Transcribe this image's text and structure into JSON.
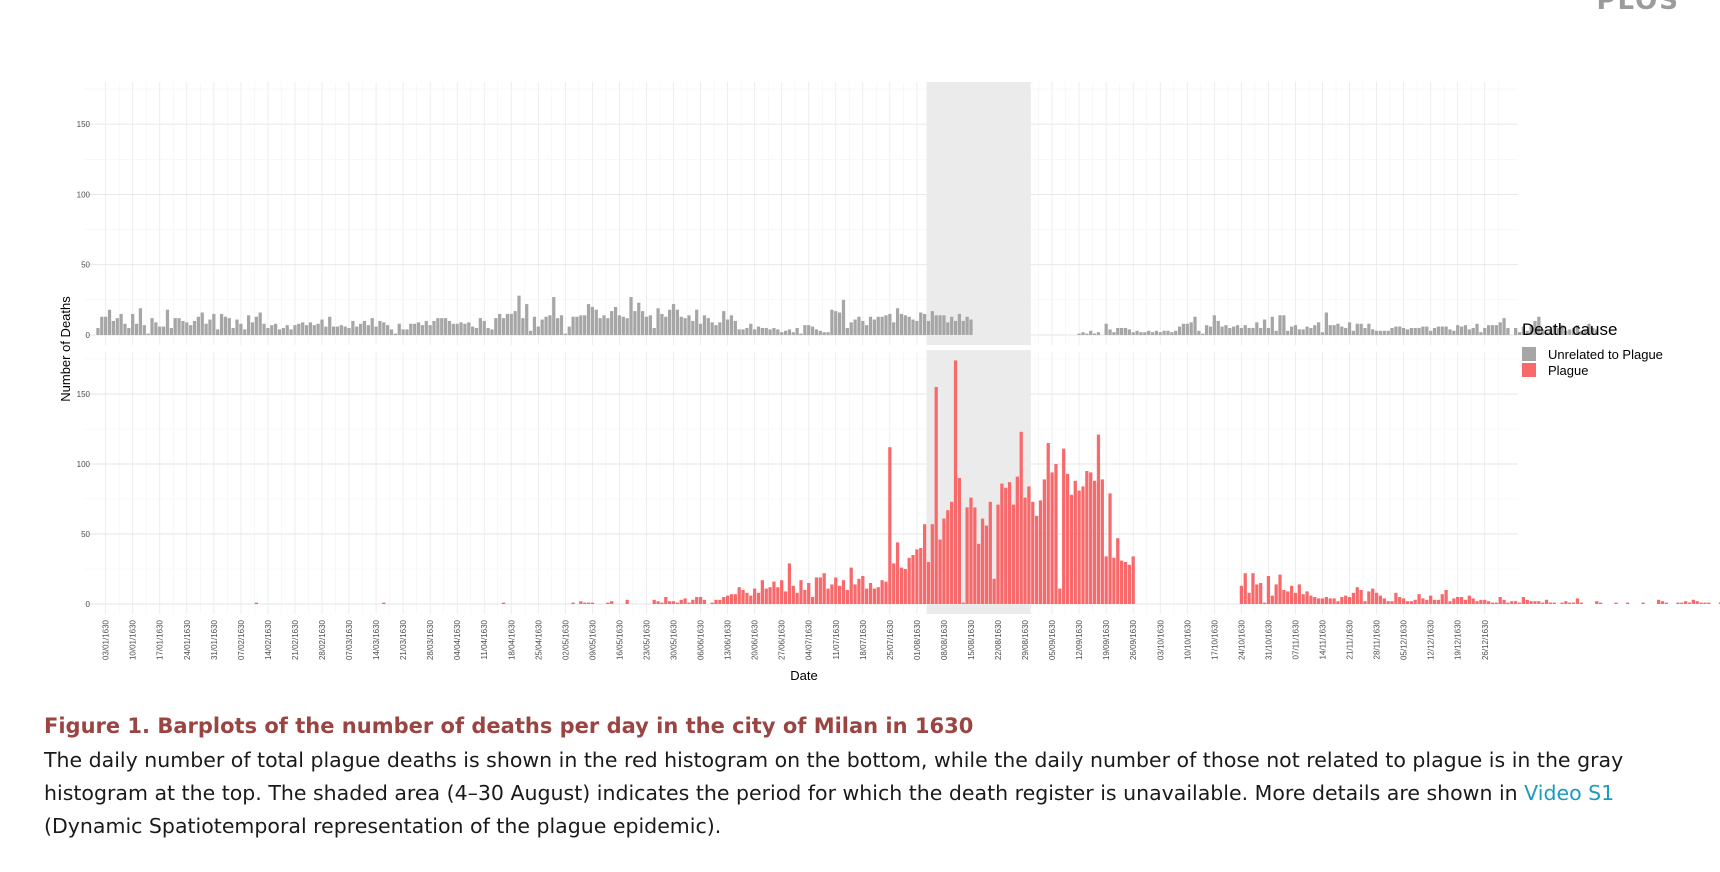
{
  "figure": {
    "caption_title": "Figure 1.  Barplots of the number of deaths per day in the city of Milan in 1630",
    "caption_text": "The daily number of total plague deaths is shown in the red histogram on the bottom, while the daily number of those not related to plague is in the gray histogram at the top. The shaded area (4–30 August) indicates the period for which the death register is unavailable. More details are shown in ",
    "caption_link": "Video S1",
    "caption_after": " (Dynamic Spatiotemporal representation of the plague epidemic).",
    "corner_logo": "PLOS"
  },
  "colors": {
    "unrelated": "#a6a6a6",
    "plague": "#f8696b",
    "shaded": "#ebebeb",
    "caption_title": "#9a4542",
    "link": "#1a9bbf"
  },
  "chart_data": {
    "type": "bar",
    "title": "",
    "xlabel": "Date",
    "ylabel": "Number of Deaths",
    "x_start": "1630-01-01",
    "x_end": "1630-12-31",
    "ylim": [
      0,
      180
    ],
    "yticks": [
      0,
      50,
      100,
      150
    ],
    "grid": true,
    "x_tick_labels": [
      "03/01/1630",
      "10/01/1630",
      "17/01/1630",
      "24/01/1630",
      "31/01/1630",
      "07/02/1630",
      "14/02/1630",
      "21/02/1630",
      "28/02/1630",
      "07/03/1630",
      "14/03/1630",
      "21/03/1630",
      "28/03/1630",
      "04/04/1630",
      "11/04/1630",
      "18/04/1630",
      "25/04/1630",
      "02/05/1630",
      "09/05/1630",
      "16/05/1630",
      "23/05/1630",
      "30/05/1630",
      "06/06/1630",
      "13/06/1630",
      "20/06/1630",
      "27/06/1630",
      "04/07/1630",
      "11/07/1630",
      "18/07/1630",
      "25/07/1630",
      "01/08/1630",
      "08/08/1630",
      "15/08/1630",
      "22/08/1630",
      "29/08/1630",
      "05/09/1630",
      "12/09/1630",
      "19/09/1630",
      "26/09/1630",
      "03/10/1630",
      "10/10/1630",
      "17/10/1630",
      "24/10/1630",
      "31/10/1630",
      "07/11/1630",
      "14/11/1630",
      "21/11/1630",
      "28/11/1630",
      "05/12/1630",
      "12/12/1630",
      "19/12/1630",
      "26/12/1630"
    ],
    "shaded_period": {
      "from": "1630-08-04",
      "to": "1630-08-30"
    },
    "legend": {
      "title": "Death cause",
      "position": "right",
      "entries": [
        "Unrelated to Plague",
        "Plague"
      ]
    },
    "panel_series": [
      "Unrelated to Plague",
      "Plague"
    ],
    "series": [
      {
        "name": "Unrelated to Plague",
        "values": [
          5,
          13,
          13,
          18,
          10,
          12,
          15,
          8,
          5,
          15,
          8,
          19,
          7,
          1,
          12,
          9,
          6,
          6,
          18,
          5,
          12,
          12,
          10,
          9,
          7,
          10,
          13,
          16,
          8,
          11,
          15,
          4,
          15,
          13,
          12,
          5,
          11,
          8,
          4,
          14,
          9,
          13,
          16,
          8,
          5,
          7,
          8,
          4,
          5,
          7,
          4,
          7,
          8,
          9,
          7,
          9,
          7,
          8,
          11,
          6,
          13,
          6,
          6,
          7,
          6,
          5,
          10,
          6,
          8,
          10,
          7,
          12,
          6,
          10,
          9,
          7,
          4,
          1,
          8,
          4,
          4,
          8,
          8,
          9,
          7,
          10,
          7,
          10,
          12,
          12,
          12,
          10,
          8,
          8,
          9,
          8,
          9,
          6,
          5,
          12,
          10,
          5,
          4,
          12,
          15,
          12,
          15,
          15,
          17,
          28,
          12,
          22,
          3,
          13,
          6,
          11,
          13,
          14,
          27,
          12,
          14,
          1,
          6,
          13,
          13,
          14,
          14,
          22,
          20,
          18,
          12,
          14,
          12,
          17,
          20,
          14,
          13,
          12,
          27,
          17,
          23,
          17,
          13,
          14,
          5,
          19,
          15,
          13,
          18,
          22,
          18,
          13,
          12,
          14,
          10,
          18,
          8,
          14,
          12,
          9,
          7,
          9,
          17,
          11,
          14,
          10,
          4,
          4,
          5,
          8,
          4,
          6,
          5,
          5,
          4,
          5,
          4,
          2,
          3,
          4,
          2,
          5,
          1,
          7,
          7,
          6,
          4,
          3,
          2,
          2,
          18,
          17,
          16,
          25,
          5,
          9,
          11,
          13,
          10,
          7,
          13,
          11,
          13,
          13,
          14,
          15,
          9,
          19,
          15,
          14,
          13,
          11,
          10,
          16,
          15,
          10,
          17,
          14,
          14,
          14,
          9,
          13,
          10,
          15,
          10,
          13,
          11,
          null,
          null,
          null,
          null,
          null,
          null,
          null,
          null,
          null,
          null,
          null,
          null,
          null,
          null,
          null,
          null,
          null,
          null,
          null,
          null,
          null,
          null,
          null,
          null,
          null,
          null,
          null,
          1,
          2,
          1,
          3,
          1,
          2,
          0,
          8,
          4,
          2,
          5,
          5,
          5,
          4,
          2,
          3,
          2,
          2,
          3,
          2,
          3,
          2,
          3,
          3,
          2,
          3,
          6,
          8,
          8,
          9,
          13,
          3,
          1,
          7,
          6,
          14,
          10,
          6,
          7,
          5,
          6,
          7,
          5,
          7,
          5,
          5,
          9,
          5,
          11,
          5,
          13,
          3,
          14,
          14,
          3,
          6,
          7,
          4,
          4,
          6,
          5,
          7,
          9,
          2,
          16,
          7,
          7,
          8,
          6,
          5,
          9,
          3,
          8,
          8,
          5,
          8,
          4,
          3,
          3,
          3,
          3,
          5,
          6,
          6,
          5,
          4,
          5,
          5,
          5,
          6,
          6,
          3,
          5,
          6,
          6,
          6,
          4,
          3,
          7,
          6,
          7,
          4,
          5,
          8,
          2,
          5,
          7,
          7,
          7,
          9,
          12,
          5,
          0,
          5,
          2,
          6,
          3,
          7,
          10,
          13,
          4,
          2,
          3,
          7,
          5,
          7,
          3,
          4,
          5,
          7,
          3,
          4,
          8,
          5,
          4
        ],
        "color": "#a6a6a6"
      },
      {
        "name": "Plague",
        "values": [
          0,
          0,
          0,
          0,
          0,
          0,
          0,
          0,
          0,
          0,
          0,
          0,
          0,
          0,
          0,
          0,
          0,
          0,
          0,
          0,
          0,
          0,
          0,
          0,
          0,
          0,
          0,
          0,
          0,
          0,
          0,
          0,
          0,
          0,
          0,
          0,
          0,
          0,
          0,
          0,
          0,
          1,
          0,
          0,
          0,
          0,
          0,
          0,
          0,
          0,
          0,
          0,
          0,
          0,
          0,
          0,
          0,
          0,
          0,
          0,
          0,
          0,
          0,
          0,
          0,
          0,
          0,
          0,
          0,
          0,
          0,
          0,
          0,
          0,
          1,
          0,
          0,
          0,
          0,
          0,
          0,
          0,
          0,
          0,
          0,
          0,
          0,
          0,
          0,
          0,
          0,
          0,
          0,
          0,
          0,
          0,
          0,
          0,
          0,
          0,
          0,
          0,
          0,
          0,
          0,
          1,
          0,
          0,
          0,
          0,
          0,
          0,
          0,
          0,
          0,
          0,
          0,
          0,
          0,
          0,
          0,
          0,
          0,
          1,
          0,
          2,
          1,
          1,
          1,
          0,
          0,
          0,
          1,
          2,
          0,
          0,
          0,
          3,
          0,
          0,
          0,
          0,
          0,
          0,
          3,
          2,
          1,
          5,
          2,
          2,
          1,
          3,
          4,
          1,
          3,
          5,
          5,
          3,
          0,
          1,
          3,
          3,
          5,
          6,
          7,
          7,
          12,
          10,
          8,
          6,
          11,
          8,
          17,
          11,
          12,
          16,
          12,
          17,
          9,
          29,
          13,
          8,
          17,
          10,
          15,
          5,
          19,
          19,
          22,
          11,
          14,
          19,
          13,
          17,
          10,
          26,
          14,
          18,
          20,
          11,
          15,
          11,
          12,
          17,
          16,
          112,
          29,
          44,
          26,
          25,
          33,
          35,
          39,
          40,
          57,
          30,
          57,
          155,
          46,
          61,
          67,
          73,
          174,
          90,
          1,
          69,
          76,
          69,
          43,
          61,
          56,
          73,
          18,
          71,
          86,
          83,
          87,
          71,
          91,
          123,
          76,
          84,
          73,
          63,
          74,
          89,
          115,
          94,
          100,
          11,
          111,
          93,
          78,
          88,
          81,
          84,
          95,
          94,
          88,
          121,
          89,
          34,
          79,
          33,
          47,
          31,
          30,
          28,
          34,
          null,
          null,
          null,
          null,
          null,
          null,
          null,
          null,
          null,
          null,
          null,
          null,
          null,
          null,
          null,
          null,
          null,
          null,
          null,
          null,
          null,
          null,
          null,
          null,
          null,
          null,
          null,
          13,
          22,
          8,
          22,
          14,
          15,
          1,
          20,
          6,
          14,
          21,
          10,
          9,
          13,
          8,
          14,
          7,
          9,
          6,
          5,
          4,
          4,
          5,
          4,
          4,
          2,
          5,
          6,
          5,
          8,
          12,
          10,
          2,
          9,
          11,
          8,
          6,
          4,
          2,
          2,
          8,
          5,
          4,
          2,
          2,
          3,
          7,
          4,
          3,
          6,
          3,
          3,
          7,
          10,
          2,
          4,
          5,
          5,
          3,
          6,
          4,
          2,
          3,
          3,
          2,
          1,
          1,
          5,
          3,
          1,
          2,
          2,
          1,
          5,
          3,
          2,
          2,
          2,
          1,
          3,
          1,
          1,
          0,
          1,
          2,
          1,
          1,
          4,
          1,
          0,
          0,
          0,
          2,
          1,
          0,
          0,
          0,
          1,
          0,
          0,
          1,
          0,
          0,
          0,
          1,
          0,
          0,
          0,
          3,
          2,
          1,
          0,
          0,
          1,
          1,
          2,
          1,
          3,
          2,
          1,
          1,
          1,
          0,
          0,
          1,
          0,
          0,
          0,
          1,
          1
        ],
        "color": "#f8696b"
      }
    ]
  }
}
